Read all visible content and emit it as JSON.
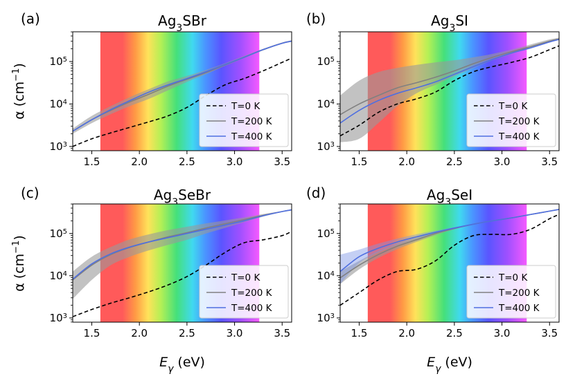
{
  "xlabel_main": "E",
  "xlabel_sub": "γ",
  "xlabel_unit": " (eV)",
  "ylabel": "α (cm",
  "ylabel_sup": "−1",
  "ylabel_close": ")",
  "legend": [
    "T=0 K",
    "T=200 K",
    "T=400 K"
  ],
  "colors": {
    "t0": "#000000",
    "t200": "#808080",
    "t400": "#4f6fe0",
    "band": "#9a9a9a",
    "band400": "#7d95e6"
  },
  "chart_data": [
    {
      "type": "line",
      "panel": "(a)",
      "title_main": "Ag",
      "title_sub": "3",
      "title_rest": "SBr",
      "xlim": [
        1.3,
        3.6
      ],
      "ylim_log10": [
        2.9,
        5.7
      ],
      "xticks": [
        "1.5",
        "2.0",
        "2.5",
        "3.0",
        "3.5"
      ],
      "xtick_values": [
        1.5,
        2.0,
        2.5,
        3.0,
        3.5
      ],
      "yticks": [
        {
          "base": "10",
          "exp": "3"
        },
        {
          "base": "10",
          "exp": "4"
        },
        {
          "base": "10",
          "exp": "5"
        }
      ],
      "ytick_values": [
        3,
        4,
        5
      ],
      "visible_band": [
        1.59,
        3.26
      ],
      "x": [
        1.3,
        1.5,
        1.7,
        1.9,
        2.1,
        2.3,
        2.5,
        2.7,
        2.9,
        3.1,
        3.3,
        3.5,
        3.6
      ],
      "series": [
        {
          "name": "T=0 K",
          "log10_values": [
            3.0,
            3.18,
            3.32,
            3.45,
            3.58,
            3.72,
            3.92,
            4.2,
            4.45,
            4.6,
            4.78,
            4.98,
            5.08
          ]
        },
        {
          "name": "T=200 K",
          "log10_values": [
            3.36,
            3.63,
            3.85,
            4.05,
            4.23,
            4.42,
            4.58,
            4.74,
            4.92,
            5.1,
            5.28,
            5.43,
            5.48
          ],
          "band_low": [
            3.3,
            3.55,
            3.76,
            3.95,
            4.12,
            4.32,
            4.52,
            4.7,
            4.9,
            5.08,
            5.26,
            5.42,
            5.47
          ],
          "band_high": [
            3.42,
            3.72,
            3.95,
            4.16,
            4.35,
            4.53,
            4.66,
            4.8,
            4.96,
            5.13,
            5.3,
            5.45,
            5.5
          ]
        },
        {
          "name": "T=400 K",
          "log10_values": [
            3.36,
            3.63,
            3.87,
            4.08,
            4.28,
            4.45,
            4.6,
            4.76,
            4.93,
            5.1,
            5.28,
            5.43,
            5.48
          ]
        }
      ]
    },
    {
      "type": "line",
      "panel": "(b)",
      "title_main": "Ag",
      "title_sub": "3",
      "title_rest": "SI",
      "xlim": [
        1.3,
        3.6
      ],
      "ylim_log10": [
        2.9,
        5.7
      ],
      "xticks": [
        "1.5",
        "2.0",
        "2.5",
        "3.0",
        "3.5"
      ],
      "xtick_values": [
        1.5,
        2.0,
        2.5,
        3.0,
        3.5
      ],
      "yticks": [
        {
          "base": "10",
          "exp": "3"
        },
        {
          "base": "10",
          "exp": "4"
        },
        {
          "base": "10",
          "exp": "5"
        }
      ],
      "ytick_values": [
        3,
        4,
        5
      ],
      "visible_band": [
        1.59,
        3.26
      ],
      "x": [
        1.3,
        1.5,
        1.7,
        1.9,
        2.1,
        2.3,
        2.5,
        2.7,
        2.9,
        3.1,
        3.3,
        3.5,
        3.6
      ],
      "series": [
        {
          "name": "T=0 K",
          "log10_values": [
            3.25,
            3.5,
            3.8,
            4.0,
            4.12,
            4.28,
            4.55,
            4.76,
            4.88,
            4.98,
            5.1,
            5.28,
            5.37
          ]
        },
        {
          "name": "T=200 K",
          "log10_values": [
            3.75,
            4.0,
            4.2,
            4.38,
            4.5,
            4.63,
            4.78,
            4.95,
            5.1,
            5.23,
            5.35,
            5.48,
            5.53
          ],
          "band_low": [
            3.1,
            3.18,
            3.55,
            3.95,
            4.25,
            4.45,
            4.65,
            4.85,
            5.03,
            5.18,
            5.32,
            5.46,
            5.52
          ],
          "band_high": [
            4.2,
            4.55,
            4.75,
            4.85,
            4.92,
            4.98,
            5.03,
            5.1,
            5.18,
            5.28,
            5.4,
            5.52,
            5.56
          ]
        },
        {
          "name": "T=400 K",
          "log10_values": [
            3.55,
            3.85,
            4.08,
            4.25,
            4.38,
            4.52,
            4.7,
            4.88,
            5.05,
            5.2,
            5.32,
            5.46,
            5.52
          ]
        }
      ]
    },
    {
      "type": "line",
      "panel": "(c)",
      "title_main": "Ag",
      "title_sub": "3",
      "title_rest": "SeBr",
      "xlim": [
        1.3,
        3.6
      ],
      "ylim_log10": [
        2.9,
        5.7
      ],
      "xticks": [
        "1.5",
        "2.0",
        "2.5",
        "3.0",
        "3.5"
      ],
      "xtick_values": [
        1.5,
        2.0,
        2.5,
        3.0,
        3.5
      ],
      "yticks": [
        {
          "base": "10",
          "exp": "3"
        },
        {
          "base": "10",
          "exp": "4"
        },
        {
          "base": "10",
          "exp": "5"
        }
      ],
      "ytick_values": [
        3,
        4,
        5
      ],
      "visible_band": [
        1.59,
        3.26
      ],
      "x": [
        1.3,
        1.5,
        1.7,
        1.9,
        2.1,
        2.3,
        2.5,
        2.7,
        2.9,
        3.1,
        3.3,
        3.5,
        3.6
      ],
      "series": [
        {
          "name": "T=0 K",
          "log10_values": [
            3.03,
            3.2,
            3.35,
            3.48,
            3.62,
            3.78,
            3.98,
            4.25,
            4.55,
            4.78,
            4.85,
            4.95,
            5.05
          ]
        },
        {
          "name": "T=200 K",
          "log10_values": [
            3.9,
            4.25,
            4.5,
            4.67,
            4.8,
            4.92,
            5.02,
            5.13,
            5.23,
            5.33,
            5.43,
            5.52,
            5.56
          ],
          "band_low": [
            3.45,
            3.9,
            4.25,
            4.45,
            4.6,
            4.73,
            4.85,
            5.0,
            5.13,
            5.27,
            5.4,
            5.51,
            5.55
          ],
          "band_high": [
            4.1,
            4.45,
            4.68,
            4.86,
            4.98,
            5.08,
            5.16,
            5.24,
            5.31,
            5.38,
            5.46,
            5.53,
            5.57
          ]
        },
        {
          "name": "T=400 K",
          "log10_values": [
            3.92,
            4.28,
            4.52,
            4.68,
            4.8,
            4.9,
            5.0,
            5.1,
            5.2,
            5.3,
            5.42,
            5.52,
            5.56
          ]
        }
      ]
    },
    {
      "type": "line",
      "panel": "(d)",
      "title_main": "Ag",
      "title_sub": "3",
      "title_rest": "SeI",
      "xlim": [
        1.3,
        3.6
      ],
      "ylim_log10": [
        2.9,
        5.7
      ],
      "xticks": [
        "1.5",
        "2.0",
        "2.5",
        "3.0",
        "3.5"
      ],
      "xtick_values": [
        1.5,
        2.0,
        2.5,
        3.0,
        3.5
      ],
      "yticks": [
        {
          "base": "10",
          "exp": "3"
        },
        {
          "base": "10",
          "exp": "4"
        },
        {
          "base": "10",
          "exp": "5"
        }
      ],
      "ytick_values": [
        3,
        4,
        5
      ],
      "visible_band": [
        1.59,
        3.26
      ],
      "x": [
        1.3,
        1.5,
        1.7,
        1.9,
        2.1,
        2.3,
        2.5,
        2.7,
        2.9,
        3.1,
        3.3,
        3.5,
        3.6
      ],
      "series": [
        {
          "name": "T=0 K",
          "log10_values": [
            3.3,
            3.6,
            3.9,
            4.1,
            4.15,
            4.35,
            4.72,
            4.95,
            4.98,
            4.98,
            5.1,
            5.35,
            5.45
          ]
        },
        {
          "name": "T=200 K",
          "log10_values": [
            3.95,
            4.25,
            4.5,
            4.7,
            4.85,
            5.0,
            5.12,
            5.22,
            5.3,
            5.37,
            5.45,
            5.53,
            5.57
          ],
          "band_low": [
            3.8,
            4.15,
            4.42,
            4.63,
            4.8,
            4.96,
            5.1,
            5.21,
            5.29,
            5.36,
            5.44,
            5.52,
            5.56
          ],
          "band_high": [
            4.1,
            4.35,
            4.58,
            4.76,
            4.9,
            5.04,
            5.14,
            5.23,
            5.31,
            5.38,
            5.46,
            5.54,
            5.58
          ]
        },
        {
          "name": "T=400 K",
          "log10_values": [
            4.1,
            4.45,
            4.65,
            4.8,
            4.92,
            5.03,
            5.13,
            5.22,
            5.3,
            5.37,
            5.45,
            5.53,
            5.57
          ],
          "band_low": [
            3.8,
            4.3,
            4.55,
            4.73,
            4.87,
            5.0,
            5.11,
            5.21,
            5.29,
            5.36,
            5.44,
            5.52,
            5.56
          ],
          "band_high": [
            4.5,
            4.62,
            4.76,
            4.88,
            4.98,
            5.07,
            5.15,
            5.23,
            5.31,
            5.38,
            5.46,
            5.54,
            5.58
          ]
        }
      ]
    }
  ]
}
